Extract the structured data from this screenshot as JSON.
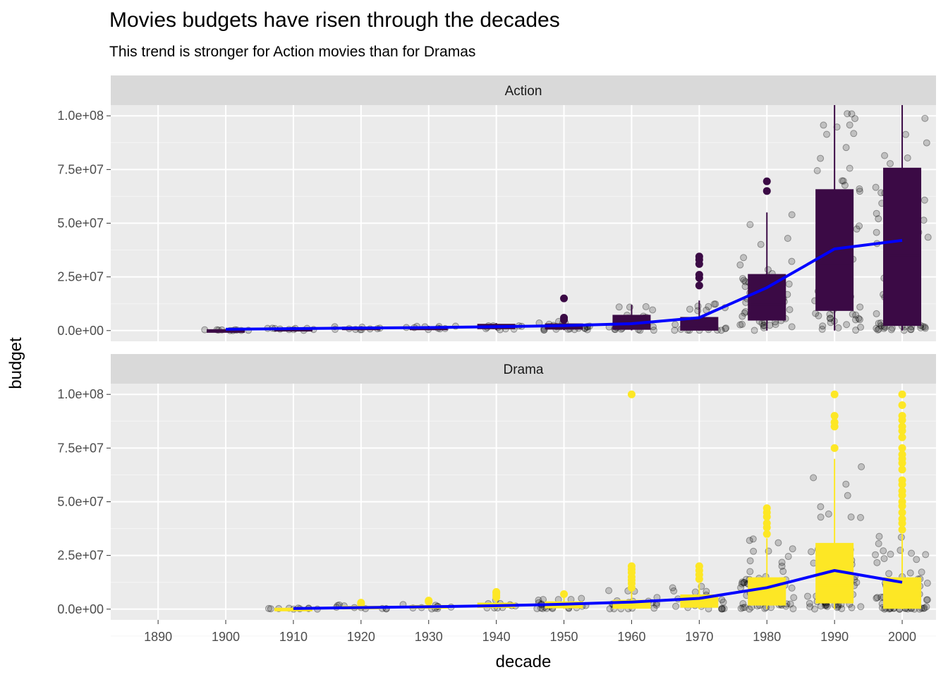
{
  "title": "Movies budgets have risen through the decades",
  "subtitle": "This trend is stronger for Action movies than for Dramas",
  "chart_data": {
    "type": "box",
    "xlabel": "decade",
    "ylabel": "budget",
    "xlim": [
      1883,
      2005
    ],
    "ylim": [
      -5000000,
      105000000
    ],
    "x_ticks": [
      1890,
      1900,
      1910,
      1920,
      1930,
      1940,
      1950,
      1960,
      1970,
      1980,
      1990,
      2000
    ],
    "x_tick_labels": [
      "1890",
      "1900",
      "1910",
      "1920",
      "1930",
      "1940",
      "1950",
      "1960",
      "1970",
      "1980",
      "1990",
      "2000"
    ],
    "y_ticks": [
      0,
      25000000,
      50000000,
      75000000,
      100000000
    ],
    "y_tick_labels": [
      "0.0e+00",
      "2.5e+07",
      "5.0e+07",
      "7.5e+07",
      "1.0e+08"
    ],
    "grid": true,
    "trend_color": "#0000ff",
    "point_color": "#000000",
    "facets": [
      {
        "name": "Action",
        "box_color": "#3b0a45",
        "boxes": [
          {
            "decade": 1900,
            "q1": 0,
            "median": 100000,
            "q3": 300000,
            "whisker_low": 0,
            "whisker_high": 400000,
            "outliers": []
          },
          {
            "decade": 1910,
            "q1": 200000,
            "median": 500000,
            "q3": 900000,
            "whisker_low": 100000,
            "whisker_high": 1200000,
            "outliers": []
          },
          {
            "decade": 1920,
            "q1": 700000,
            "median": 1100000,
            "q3": 1500000,
            "whisker_low": 300000,
            "whisker_high": 2000000,
            "outliers": []
          },
          {
            "decade": 1930,
            "q1": 500000,
            "median": 900000,
            "q3": 1500000,
            "whisker_low": 200000,
            "whisker_high": 2200000,
            "outliers": []
          },
          {
            "decade": 1940,
            "q1": 1000000,
            "median": 1700000,
            "q3": 2800000,
            "whisker_low": 300000,
            "whisker_high": 3500000,
            "outliers": []
          },
          {
            "decade": 1950,
            "q1": 800000,
            "median": 1700000,
            "q3": 3000000,
            "whisker_low": 200000,
            "whisker_high": 5000000,
            "outliers": [
              5000000,
              6000000,
              15000000
            ]
          },
          {
            "decade": 1960,
            "q1": 700000,
            "median": 2000000,
            "q3": 7000000,
            "whisker_low": 100000,
            "whisker_high": 12000000,
            "outliers": []
          },
          {
            "decade": 1970,
            "q1": 300000,
            "median": 1500000,
            "q3": 6000000,
            "whisker_low": 0,
            "whisker_high": 14000000,
            "outliers": [
              21000000,
              24500000,
              26000000,
              31000000,
              33000000,
              34500000
            ]
          },
          {
            "decade": 1980,
            "q1": 5000000,
            "median": 12000000,
            "q3": 26000000,
            "whisker_low": 0,
            "whisker_high": 55000000,
            "outliers": [
              65000000,
              69500000
            ]
          },
          {
            "decade": 1990,
            "q1": 9500000,
            "median": 30000000,
            "q3": 65500000,
            "whisker_low": 0,
            "whisker_high": 105000000,
            "outliers": []
          },
          {
            "decade": 2000,
            "q1": 2500000,
            "median": 35000000,
            "q3": 75500000,
            "whisker_low": 0,
            "whisker_high": 105000000,
            "outliers": []
          }
        ],
        "trend": [
          {
            "x": 1900,
            "y": 600000
          },
          {
            "x": 1910,
            "y": 900000
          },
          {
            "x": 1920,
            "y": 1200000
          },
          {
            "x": 1930,
            "y": 1400000
          },
          {
            "x": 1940,
            "y": 1800000
          },
          {
            "x": 1950,
            "y": 2300000
          },
          {
            "x": 1960,
            "y": 3200000
          },
          {
            "x": 1970,
            "y": 6000000
          },
          {
            "x": 1980,
            "y": 20000000
          },
          {
            "x": 1990,
            "y": 38000000
          },
          {
            "x": 2000,
            "y": 42000000
          }
        ]
      },
      {
        "name": "Drama",
        "box_color": "#fde725",
        "boxes": [
          {
            "decade": 1910,
            "q1": 0,
            "median": 100000,
            "q3": 300000,
            "whisker_low": 0,
            "whisker_high": 500000,
            "outliers": []
          },
          {
            "decade": 1920,
            "q1": 300000,
            "median": 600000,
            "q3": 1200000,
            "whisker_low": 100000,
            "whisker_high": 2000000,
            "outliers": [
              2500000,
              3000000
            ]
          },
          {
            "decade": 1930,
            "q1": 500000,
            "median": 900000,
            "q3": 1600000,
            "whisker_low": 100000,
            "whisker_high": 2800000,
            "outliers": [
              3500000,
              4000000
            ]
          },
          {
            "decade": 1940,
            "q1": 900000,
            "median": 1500000,
            "q3": 2700000,
            "whisker_low": 200000,
            "whisker_high": 4500000,
            "outliers": [
              5500000,
              6500000,
              7500000,
              8000000
            ]
          },
          {
            "decade": 1950,
            "q1": 700000,
            "median": 1700000,
            "q3": 3300000,
            "whisker_low": 100000,
            "whisker_high": 6000000,
            "outliers": [
              7000000
            ]
          },
          {
            "decade": 1960,
            "q1": 500000,
            "median": 1500000,
            "q3": 4000000,
            "whisker_low": 0,
            "whisker_high": 9000000,
            "outliers": [
              10000000,
              12000000,
              13500000,
              15000000,
              17000000,
              18500000,
              20000000,
              100000000
            ]
          },
          {
            "decade": 1970,
            "q1": 1000000,
            "median": 3000000,
            "q3": 6500000,
            "whisker_low": 0,
            "whisker_high": 12000000,
            "outliers": [
              14000000,
              16000000,
              18000000,
              20000000
            ]
          },
          {
            "decade": 1980,
            "q1": 2000000,
            "median": 6000000,
            "q3": 14500000,
            "whisker_low": 0,
            "whisker_high": 33000000,
            "outliers": [
              35000000,
              38000000,
              40000000,
              43000000,
              45000000,
              47000000
            ]
          },
          {
            "decade": 1990,
            "q1": 3000000,
            "median": 11000000,
            "q3": 30500000,
            "whisker_low": 0,
            "whisker_high": 70000000,
            "outliers": [
              75000000,
              85000000,
              87000000,
              90000000,
              100000000
            ]
          },
          {
            "decade": 2000,
            "q1": 500000,
            "median": 4000000,
            "q3": 14500000,
            "whisker_low": 0,
            "whisker_high": 35000000,
            "outliers": [
              37000000,
              40000000,
              42000000,
              45000000,
              48000000,
              50000000,
              53000000,
              55000000,
              58000000,
              60000000,
              65000000,
              68000000,
              70000000,
              72000000,
              75000000,
              80000000,
              83000000,
              85000000,
              88000000,
              90000000,
              95000000,
              100000000
            ]
          }
        ],
        "trend": [
          {
            "x": 1910,
            "y": 300000
          },
          {
            "x": 1920,
            "y": 700000
          },
          {
            "x": 1930,
            "y": 1100000
          },
          {
            "x": 1940,
            "y": 1600000
          },
          {
            "x": 1950,
            "y": 2300000
          },
          {
            "x": 1960,
            "y": 3300000
          },
          {
            "x": 1970,
            "y": 5000000
          },
          {
            "x": 1980,
            "y": 10000000
          },
          {
            "x": 1990,
            "y": 18000000
          },
          {
            "x": 2000,
            "y": 12500000
          }
        ]
      }
    ]
  }
}
